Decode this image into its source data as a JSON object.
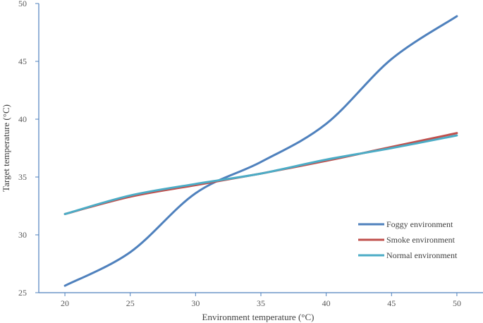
{
  "chart_data": {
    "type": "line",
    "xlabel": "Environment  temperature (°C)",
    "ylabel": "Target temperature (°C)",
    "xlim": [
      18,
      52
    ],
    "ylim": [
      25,
      50
    ],
    "x_ticks": [
      "20",
      "25",
      "30",
      "35",
      "40",
      "45",
      "50"
    ],
    "y_ticks": [
      "25",
      "30",
      "35",
      "40",
      "45",
      "50"
    ],
    "grid": false,
    "legend_position": "right",
    "series": [
      {
        "name": "Foggy environment",
        "color": "#4F81BD",
        "x": [
          20,
          25,
          30,
          35,
          40,
          45,
          50
        ],
        "y": [
          25.6,
          28.5,
          33.6,
          36.3,
          39.6,
          45.2,
          48.9
        ]
      },
      {
        "name": "Smoke environment",
        "color": "#C0504D",
        "x": [
          20,
          25,
          30,
          35,
          40,
          45,
          50
        ],
        "y": [
          31.8,
          33.3,
          34.3,
          35.3,
          36.4,
          37.6,
          38.8
        ]
      },
      {
        "name": "Normal environment",
        "color": "#4BACC6",
        "x": [
          20,
          25,
          30,
          35,
          40,
          45,
          50
        ],
        "y": [
          31.8,
          33.4,
          34.4,
          35.3,
          36.5,
          37.5,
          38.6
        ]
      }
    ]
  }
}
